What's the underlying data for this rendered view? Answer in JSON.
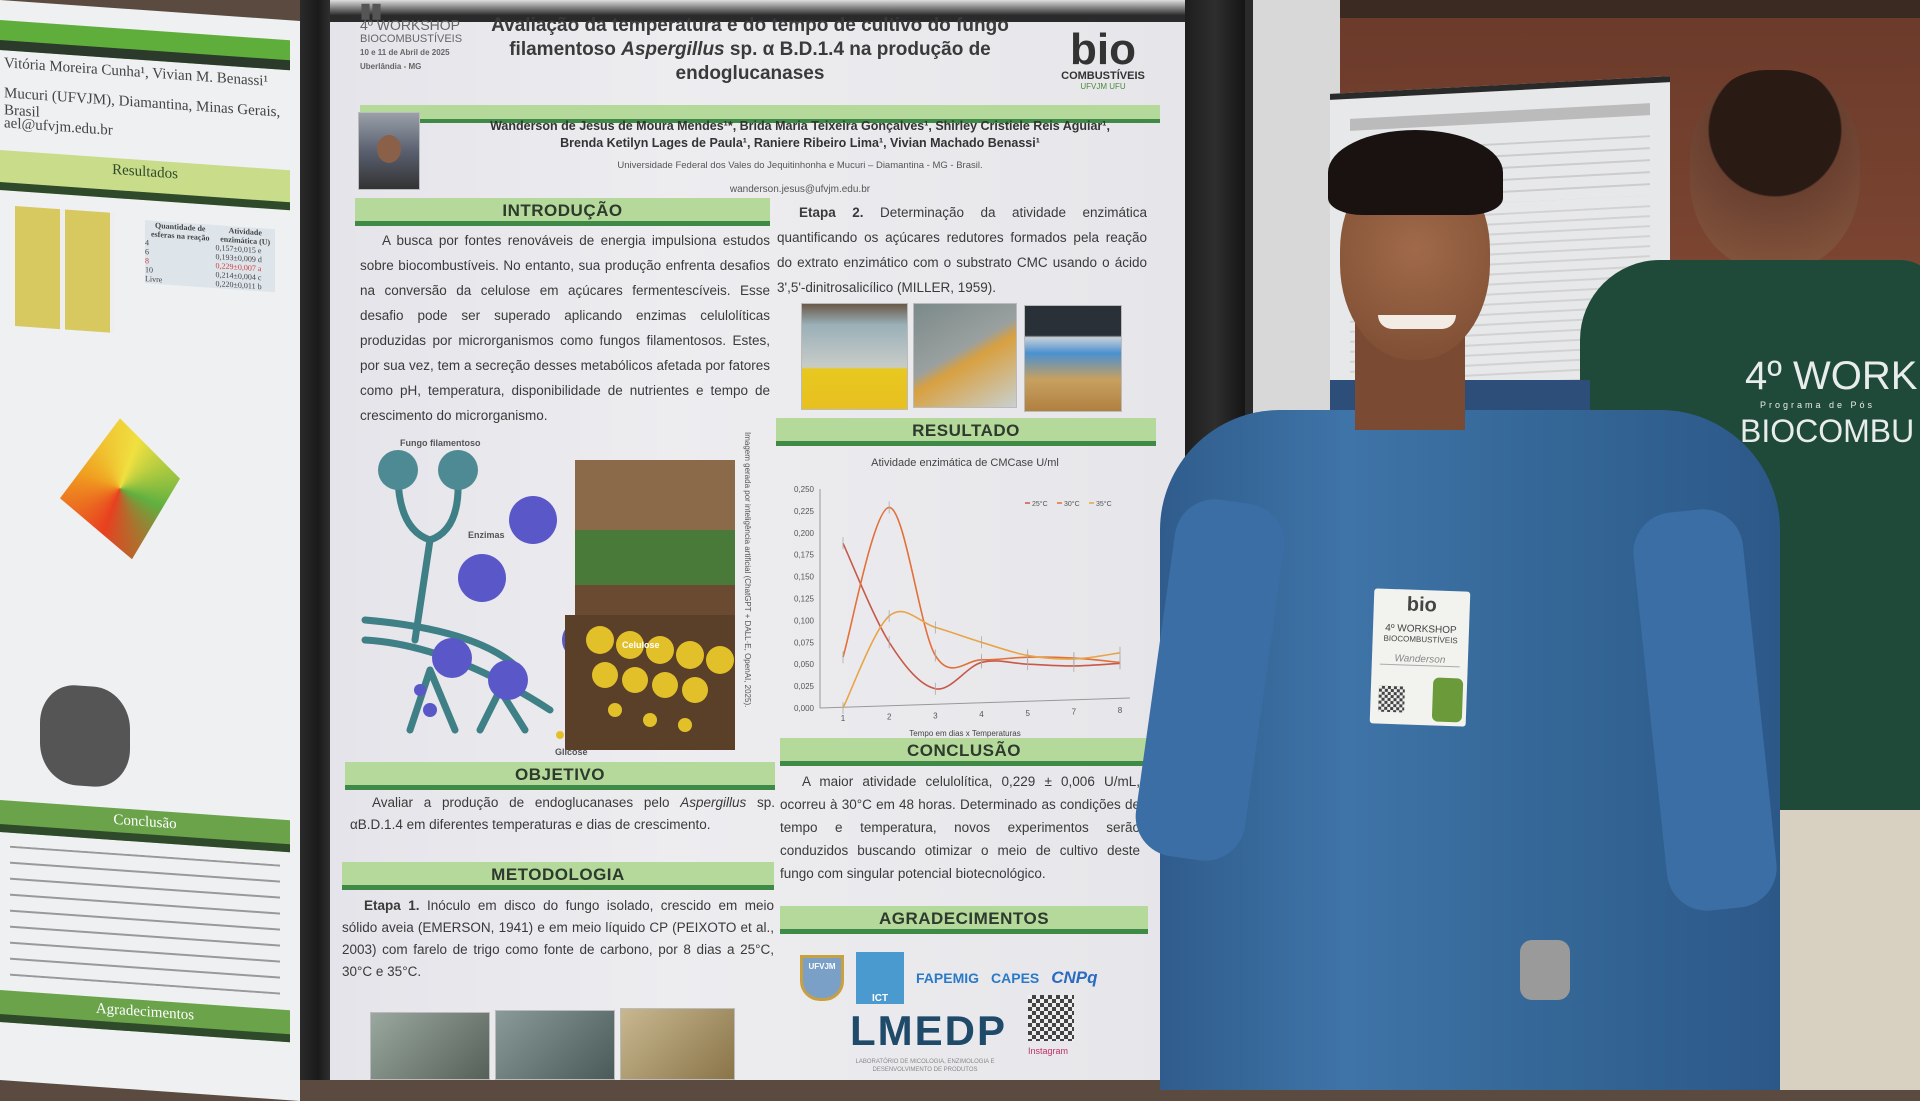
{
  "background_poster_left": {
    "authors_fragment": "Vitória Moreira Cunha¹, Vivian M. Benassi¹",
    "affiliation_fragment": "Mucuri (UFVJM), Diamantina, Minas Gerais, Brasil",
    "email_fragment": "ael@ufvjm.edu.br",
    "section_results": "Resultados",
    "section_conclusion": "Conclusão",
    "section_ack": "Agradecimentos",
    "table_header": [
      "Quantidade de esferas na reação",
      "Atividade enzimática (U)"
    ],
    "table_rows": [
      [
        "4",
        "0,157±0,015 e"
      ],
      [
        "6",
        "0,193±0,009 d"
      ],
      [
        "8",
        "0,229±0,007 a"
      ],
      [
        "10",
        "0,214±0,004 c"
      ],
      [
        "Livre",
        "0,220±0,011 b"
      ]
    ]
  },
  "poster": {
    "event_logo": {
      "line1": "4º WORKSHOP",
      "line2": "BIOCOMBUSTÍVEIS",
      "date": "10 e 11 de Abril de 2025",
      "place": "Uberlândia - MG"
    },
    "title_part1": "Avaliação da temperatura e do tempo de cultivo do fungo filamentoso ",
    "title_species": "Aspergillus",
    "title_part2": " sp. α B.D.1.4 na produção de endoglucanases",
    "bio_logo": {
      "text": "bio",
      "sub": "COMBUSTÍVEIS",
      "partners": "UFVJM  UFU"
    },
    "authors_line1": "Wanderson de Jesus de Moura Mendes¹*, Brida Maria Teixeira Gonçalves¹, Shirley Cristiele Reis Aguiar¹,",
    "authors_line2": "Brenda Ketilyn Lages de Paula¹, Raniere Ribeiro Lima¹, Vivian Machado Benassi¹",
    "affiliation": "Universidade Federal dos Vales do Jequitinhonha e Mucuri – Diamantina - MG - Brasil.",
    "email": "wanderson.jesus@ufvjm.edu.br",
    "intro": {
      "heading": "INTRODUÇÃO",
      "text": "A busca por fontes renováveis de energia impulsiona estudos sobre biocombustíveis. No entanto, sua produção enfrenta desafios na conversão da celulose em açúcares fermentescíveis. Esse desafio pode ser superado aplicando enzimas celulolíticas produzidas por microrganismos como fungos filamentosos. Estes, por sua vez, tem a secreção desses metabólicos afetada por fatores como pH, temperatura, disponibilidade de nutrientes e tempo de crescimento do microrganismo."
    },
    "figure": {
      "label_fungus": "Fungo filamentoso",
      "label_enzymes": "Enzimas",
      "label_cellulose": "Celulose",
      "label_glucose": "Glicose",
      "credit": "Imagem gerada por inteligência artificial (ChatGPT + DALL·E, OpenAI, 2025)."
    },
    "objective": {
      "heading": "OBJETIVO",
      "text_a": "Avaliar a produção de endoglucanases pelo ",
      "species": "Aspergillus",
      "text_b": " sp. αB.D.1.4 em diferentes temperaturas e dias de crescimento."
    },
    "methodology": {
      "heading": "METODOLOGIA",
      "step1_label": "Etapa 1.",
      "step1_text": " Inóculo em disco do fungo isolado, crescido em meio sólido aveia (EMERSON, 1941) e em meio líquido CP (PEIXOTO et al., 2003) com farelo de trigo como fonte de carbono, por 8 dias a 25°C, 30°C e 35°C.",
      "step2_label": "Etapa 2.",
      "step2_text": " Determinação da atividade enzimática quantificando os açúcares redutores formados pela reação do extrato enzimático com o substrato CMC usando o ácido 3',5'-dinitrosalicílico (MILLER, 1959)."
    },
    "result": {
      "heading": "RESULTADO"
    },
    "conclusion": {
      "heading": "CONCLUSÃO",
      "text": "A maior atividade celulolítica, 0,229 ± 0,006 U/mL, ocorreu à 30°C em 48 horas. Determinado as condições de tempo e temperatura, novos experimentos serão conduzidos buscando otimizar o meio de cultivo deste fungo com singular potencial biotecnológico."
    },
    "acknowledgements": {
      "heading": "AGRADECIMENTOS",
      "logos": [
        "UFVJM",
        "ICT",
        "FAPEMIG",
        "CAPES",
        "CNPq"
      ],
      "lab_logo": "LMEDP",
      "lab_name": "LABORATÓRIO DE MICOLOGIA, ENZIMOLOGIA E DESENVOLVIMENTO DE PRODUTOS",
      "instagram": "Instagram"
    }
  },
  "chart_data": {
    "type": "line",
    "title": "Atividade enzimática de CMCase U/ml",
    "xlabel": "Tempo em dias x Temperaturas",
    "ylabel": "",
    "categories": [
      "1",
      "2",
      "3",
      "4",
      "5",
      "7",
      "8"
    ],
    "ylim": [
      0,
      0.25
    ],
    "yticks": [
      "0,000",
      "0,025",
      "0,050",
      "0,075",
      "0,100",
      "0,125",
      "0,150",
      "0,175",
      "0,200",
      "0,225",
      "0,250"
    ],
    "legend_position": "top-right",
    "grid": false,
    "series": [
      {
        "name": "25°C",
        "color": "#c8584a",
        "values": [
          0.188,
          0.075,
          0.022,
          0.052,
          0.05,
          0.048,
          0.051
        ]
      },
      {
        "name": "30°C",
        "color": "#e2703a",
        "values": [
          0.058,
          0.229,
          0.06,
          0.055,
          0.058,
          0.057,
          0.052
        ]
      },
      {
        "name": "35°C",
        "color": "#e8a448",
        "values": [
          0.0,
          0.105,
          0.092,
          0.075,
          0.06,
          0.056,
          0.063
        ]
      }
    ]
  },
  "badge": {
    "logo": "bio",
    "line1": "4º WORKSHOP",
    "line2": "BIOCOMBUSTÍVEIS",
    "name": "Wanderson"
  },
  "shirt_print": {
    "line1": "4º WORK",
    "line2": "Programa de Pós",
    "line3": "BIOCOMBU"
  }
}
